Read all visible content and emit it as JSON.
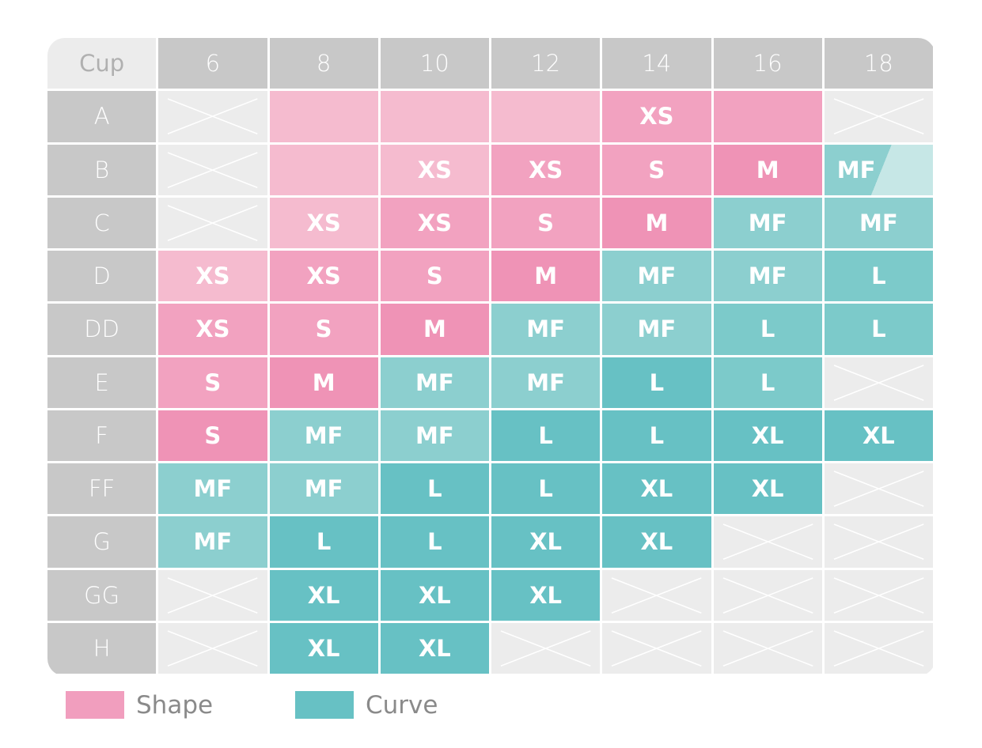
{
  "table": {
    "header": [
      "Cup",
      "6",
      "8",
      "10",
      "12",
      "14",
      "16",
      "18"
    ],
    "rows": [
      {
        "cup": "A",
        "cells": [
          null,
          null,
          null,
          null,
          "XS",
          null,
          null
        ],
        "colors": [
          null,
          "#f5bbcf",
          "#f5bbcf",
          "#f5bbcf",
          "#f2a2c0",
          "#f2a2c0",
          null
        ]
      },
      {
        "cup": "B",
        "cells": [
          null,
          null,
          "XS",
          "XS",
          "S",
          "M",
          "MF"
        ],
        "colors": [
          null,
          "#f5bbcf",
          "#f5bbcf",
          "#f2a2c0",
          "#f2a2c0",
          "#ef93b6",
          [
            "#8ccfcf",
            "#c6e7e6"
          ]
        ]
      },
      {
        "cup": "C",
        "cells": [
          null,
          "XS",
          "XS",
          "S",
          "M",
          "MF",
          "MF"
        ],
        "colors": [
          null,
          "#f5bbcf",
          "#f2a2c0",
          "#f2a2c0",
          "#ef93b6",
          "#8ccfcf",
          "#8ccfcf"
        ]
      },
      {
        "cup": "D",
        "cells": [
          "XS",
          "XS",
          "S",
          "M",
          "MF",
          "MF",
          "L"
        ],
        "colors": [
          "#f5bbcf",
          "#f2a2c0",
          "#f2a2c0",
          "#ef93b6",
          "#8ccfcf",
          "#8ccfcf",
          "#7ccaca"
        ]
      },
      {
        "cup": "DD",
        "cells": [
          "XS",
          "S",
          "M",
          "MF",
          "MF",
          "L",
          "L"
        ],
        "colors": [
          "#f2a2c0",
          "#f2a2c0",
          "#ef93b6",
          "#8ccfcf",
          "#8ccfcf",
          "#7ccaca",
          "#7ccaca"
        ]
      },
      {
        "cup": "E",
        "cells": [
          "S",
          "M",
          "MF",
          "MF",
          "L",
          "L",
          null
        ],
        "colors": [
          "#f2a2c0",
          "#ef93b6",
          "#8ccfcf",
          "#8ccfcf",
          "#67c1c4",
          "#7ccaca",
          null
        ]
      },
      {
        "cup": "F",
        "cells": [
          "S",
          "MF",
          "MF",
          "L",
          "L",
          "XL",
          "XL"
        ],
        "colors": [
          "#ef93b6",
          "#8ccfcf",
          "#8ccfcf",
          "#67c1c4",
          "#67c1c4",
          "#67c1c4",
          "#67c1c4"
        ]
      },
      {
        "cup": "FF",
        "cells": [
          "MF",
          "MF",
          "L",
          "L",
          "XL",
          "XL",
          null
        ],
        "colors": [
          "#8ccfcf",
          "#8ccfcf",
          "#67c1c4",
          "#67c1c4",
          "#67c1c4",
          "#67c1c4",
          null
        ]
      },
      {
        "cup": "G",
        "cells": [
          "MF",
          "L",
          "L",
          "XL",
          "XL",
          null,
          null
        ],
        "colors": [
          "#8ccfcf",
          "#67c1c4",
          "#67c1c4",
          "#67c1c4",
          "#67c1c4",
          null,
          null
        ]
      },
      {
        "cup": "GG",
        "cells": [
          null,
          "XL",
          "XL",
          "XL",
          null,
          null,
          null
        ],
        "colors": [
          null,
          "#67c1c4",
          "#67c1c4",
          "#67c1c4",
          null,
          null,
          null
        ]
      },
      {
        "cup": "H",
        "cells": [
          null,
          "XL",
          "XL",
          null,
          null,
          null,
          null
        ],
        "colors": [
          null,
          "#67c1c4",
          "#67c1c4",
          null,
          null,
          null,
          null
        ]
      }
    ]
  },
  "legend": [
    {
      "name": "Shape",
      "color": "#f19ebe"
    },
    {
      "name": "Curve",
      "color": "#67c1c4"
    }
  ]
}
